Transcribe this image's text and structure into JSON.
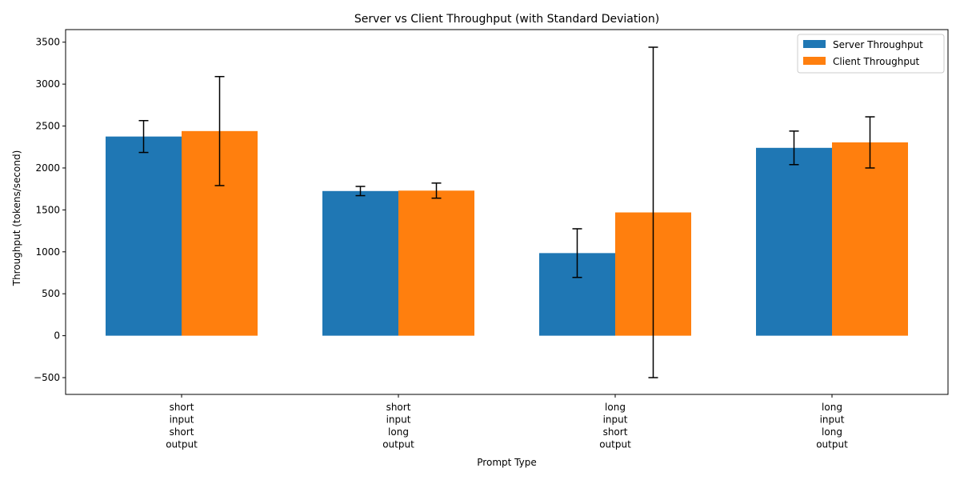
{
  "chart_data": {
    "type": "bar",
    "title": "Server vs Client Throughput (with Standard Deviation)",
    "xlabel": "Prompt Type",
    "ylabel": "Throughput (tokens/second)",
    "categories": [
      [
        "short",
        "input",
        "short",
        "output"
      ],
      [
        "short",
        "input",
        "long",
        "output"
      ],
      [
        "long",
        "input",
        "short",
        "output"
      ],
      [
        "long",
        "input",
        "long",
        "output"
      ]
    ],
    "series": [
      {
        "name": "Server Throughput",
        "color": "#1f77b4",
        "values": [
          2375,
          1725,
          985,
          2240
        ],
        "std": [
          190,
          55,
          290,
          200
        ]
      },
      {
        "name": "Client Throughput",
        "color": "#ff7f0e",
        "values": [
          2440,
          1730,
          1470,
          2305
        ],
        "std": [
          650,
          90,
          1970,
          305
        ]
      }
    ],
    "ylim": [
      -700,
      3650
    ],
    "yticks": [
      -500,
      0,
      500,
      1000,
      1500,
      2000,
      2500,
      3000,
      3500
    ],
    "ytick_labels": [
      "−500",
      "0",
      "500",
      "1000",
      "1500",
      "2000",
      "2500",
      "3000",
      "3500"
    ],
    "grid": false,
    "legend_position": "top-right"
  }
}
